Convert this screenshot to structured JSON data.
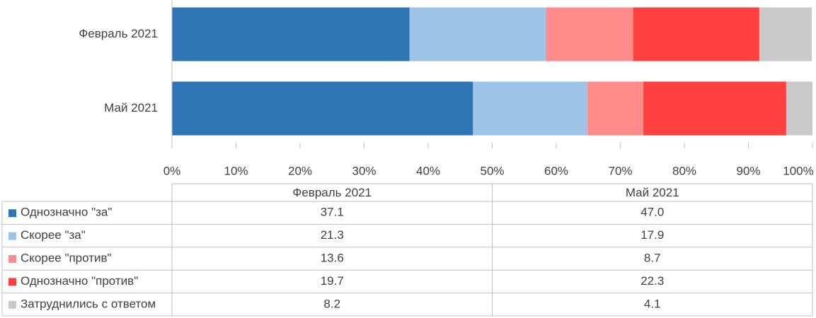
{
  "chart_data": {
    "type": "stacked-bar-horizontal",
    "categories": [
      "Февраль 2021",
      "Май 2021"
    ],
    "series": [
      {
        "name": "Однозначно \"за\"",
        "color": "#2e75b6",
        "values": [
          37.1,
          47.0
        ],
        "value_labels": [
          "37.1",
          "47.0"
        ]
      },
      {
        "name": "Скорее \"за\"",
        "color": "#9dc3e6",
        "values": [
          21.3,
          17.9
        ],
        "value_labels": [
          "21.3",
          "17.9"
        ]
      },
      {
        "name": "Скорее \"против\"",
        "color": "#ff8b8b",
        "values": [
          13.6,
          8.7
        ],
        "value_labels": [
          "13.6",
          "8.7"
        ]
      },
      {
        "name": "Однозначно \"против\"",
        "color": "#ff4040",
        "values": [
          19.7,
          22.3
        ],
        "value_labels": [
          "19.7",
          "22.3"
        ]
      },
      {
        "name": "Затруднились с ответом",
        "color": "#c9c9c9",
        "values": [
          8.2,
          4.1
        ],
        "value_labels": [
          "8.2",
          "4.1"
        ]
      }
    ],
    "xlim": [
      0,
      100
    ],
    "xticks": [
      {
        "value": 0,
        "label": "0%"
      },
      {
        "value": 10,
        "label": "10%"
      },
      {
        "value": 20,
        "label": "20%"
      },
      {
        "value": 30,
        "label": "30%"
      },
      {
        "value": 40,
        "label": "40%"
      },
      {
        "value": 50,
        "label": "50%"
      },
      {
        "value": 60,
        "label": "60%"
      },
      {
        "value": 70,
        "label": "70%"
      },
      {
        "value": 80,
        "label": "80%"
      },
      {
        "value": 90,
        "label": "90%"
      },
      {
        "value": 100,
        "label": "100%"
      }
    ],
    "data_table": true
  }
}
